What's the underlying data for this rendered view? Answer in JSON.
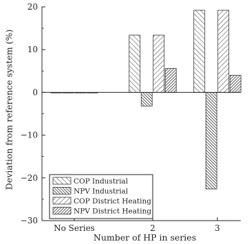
{
  "chart_data": {
    "type": "bar",
    "categories": [
      "No Series",
      "2",
      "3"
    ],
    "series": [
      {
        "name": "COP Industrial",
        "values": [
          0.0,
          13.4,
          19.2
        ],
        "pattern": "hatch-coarse-back"
      },
      {
        "name": "NPV Industrial",
        "values": [
          0.0,
          -3.2,
          -22.6
        ],
        "pattern": "hatch-dense-back"
      },
      {
        "name": "COP District Heating",
        "values": [
          0.0,
          13.4,
          19.2
        ],
        "pattern": "hatch-coarse-fwd"
      },
      {
        "name": "NPV District Heating",
        "values": [
          0.0,
          5.6,
          4.0
        ],
        "pattern": "hatch-dense-fwd"
      }
    ],
    "xlabel": "Number of HP in series",
    "ylabel": "Deviation from reference system (%)",
    "ylim": [
      -30,
      20
    ],
    "yticks": [
      -30,
      -20,
      -10,
      0,
      10,
      20
    ],
    "grid": false,
    "legend_position": "lower-left",
    "colors": {
      "edge": "#333333",
      "hatch": "#444444",
      "fill": "#ffffff"
    }
  }
}
